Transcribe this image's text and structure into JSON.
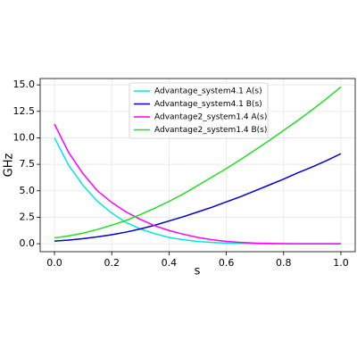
{
  "chart_data": {
    "type": "line",
    "xlabel": "s",
    "ylabel": "GHz",
    "x": [
      0,
      0.05,
      0.1,
      0.15,
      0.2,
      0.25,
      0.3,
      0.35,
      0.4,
      0.45,
      0.5,
      0.55,
      0.6,
      0.65,
      0.7,
      0.75,
      0.8,
      0.85,
      0.9,
      0.95,
      1.0
    ],
    "series": [
      {
        "name": "Advantage_system4.1 A(s)",
        "color": "#00e5e5",
        "values": [
          10.0,
          7.4,
          5.5,
          4.0,
          2.9,
          2.0,
          1.4,
          0.95,
          0.6,
          0.38,
          0.22,
          0.12,
          0.06,
          0.03,
          0.01,
          0,
          0,
          0,
          0,
          0,
          0
        ]
      },
      {
        "name": "Advantage_system4.1 B(s)",
        "color": "#0000cc",
        "values": [
          0.25,
          0.35,
          0.48,
          0.65,
          0.85,
          1.1,
          1.4,
          1.75,
          2.15,
          2.55,
          3.0,
          3.45,
          3.95,
          4.45,
          5.0,
          5.55,
          6.1,
          6.7,
          7.25,
          7.85,
          8.5
        ]
      },
      {
        "name": "Advantage2_system1.4 A(s)",
        "color": "#ff00ff",
        "values": [
          11.3,
          8.6,
          6.6,
          5.0,
          3.9,
          3.0,
          2.3,
          1.7,
          1.25,
          0.9,
          0.6,
          0.38,
          0.22,
          0.12,
          0.06,
          0.03,
          0.01,
          0,
          0,
          0,
          0
        ]
      },
      {
        "name": "Advantage2_system1.4 B(s)",
        "color": "#22dd22",
        "values": [
          0.55,
          0.75,
          1.0,
          1.35,
          1.75,
          2.2,
          2.75,
          3.35,
          4.0,
          4.7,
          5.5,
          6.3,
          7.1,
          7.95,
          8.85,
          9.75,
          10.7,
          11.65,
          12.65,
          13.7,
          14.8
        ]
      }
    ],
    "xlim": [
      -0.05,
      1.05
    ],
    "ylim": [
      -0.75,
      15.6
    ],
    "xticks": [
      {
        "value": 0,
        "label": "0.0"
      },
      0.2,
      0.4,
      0.6,
      0.8,
      {
        "value": 1,
        "label": "1.0"
      }
    ],
    "yticks": [
      {
        "value": 0,
        "label": "0.0"
      },
      2.5,
      {
        "value": 5,
        "label": "5.0"
      },
      7.5,
      {
        "value": 10,
        "label": "10.0"
      },
      12.5,
      {
        "value": 15,
        "label": "15.0"
      }
    ],
    "grid": true,
    "legend": "upper center"
  }
}
